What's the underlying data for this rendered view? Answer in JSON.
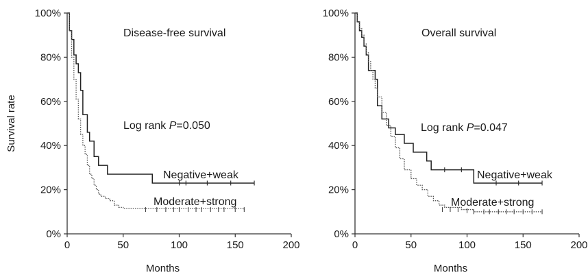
{
  "chart_data": [
    {
      "type": "line",
      "subtype": "kaplan-meier",
      "title": "Disease-free survival",
      "xlabel": "Months",
      "ylabel": "Survival rate",
      "xlim": [
        0,
        200
      ],
      "ylim": [
        0,
        100
      ],
      "x_ticks": [
        "0",
        "50",
        "100",
        "150",
        "200"
      ],
      "y_ticks": [
        "0%",
        "20%",
        "40%",
        "60%",
        "80%",
        "100%"
      ],
      "grid": false,
      "annotation": {
        "prefix": "Log rank ",
        "var": "P",
        "suffix": "=0.050"
      },
      "series": [
        {
          "name": "Negative+weak",
          "line": "solid",
          "x": [
            0,
            2,
            4,
            6,
            8,
            10,
            12,
            14,
            18,
            20,
            24,
            28,
            36,
            76,
            167
          ],
          "y": [
            100,
            92,
            88,
            81,
            77,
            73,
            65,
            54,
            46,
            42,
            35,
            31,
            27,
            23,
            23
          ],
          "censored_x": [
            100,
            106,
            125,
            146,
            167
          ],
          "censored_y": [
            23,
            23,
            23,
            23,
            23
          ]
        },
        {
          "name": "Moderate+strong",
          "line": "dotted",
          "x": [
            0,
            2,
            4,
            6,
            8,
            10,
            12,
            14,
            16,
            18,
            20,
            22,
            24,
            26,
            28,
            30,
            34,
            38,
            42,
            46,
            50,
            158
          ],
          "y": [
            100,
            92,
            80,
            70,
            61,
            52,
            45,
            40,
            36,
            31,
            27,
            25,
            22,
            20,
            18,
            17,
            16,
            15,
            13,
            12,
            11.5,
            11
          ],
          "censored_x": [
            70,
            80,
            88,
            95,
            100,
            108,
            115,
            120,
            128,
            135,
            140,
            150,
            158
          ],
          "censored_y": [
            11,
            11,
            11,
            11,
            11,
            11,
            11,
            11,
            11,
            11,
            11,
            11,
            11
          ]
        }
      ]
    },
    {
      "type": "line",
      "subtype": "kaplan-meier",
      "title": "Overall survival",
      "xlabel": "Months",
      "ylabel": "",
      "xlim": [
        0,
        200
      ],
      "ylim": [
        0,
        100
      ],
      "x_ticks": [
        "0",
        "50",
        "100",
        "150",
        "200"
      ],
      "y_ticks": [
        "0%",
        "20%",
        "40%",
        "60%",
        "80%",
        "100%"
      ],
      "grid": false,
      "annotation": {
        "prefix": "Log rank ",
        "var": "P",
        "suffix": "=0.047"
      },
      "series": [
        {
          "name": "Negative+weak",
          "line": "solid",
          "x": [
            0,
            2,
            4,
            6,
            8,
            10,
            12,
            18,
            20,
            24,
            30,
            36,
            44,
            52,
            64,
            68,
            106,
            167
          ],
          "y": [
            100,
            96,
            92,
            89,
            85,
            81,
            74,
            70,
            58,
            52,
            48,
            45,
            41,
            37,
            33,
            29,
            23,
            23
          ],
          "censored_x": [
            80,
            95,
            126,
            146,
            167
          ],
          "censored_y": [
            29,
            29,
            23,
            23,
            23
          ]
        },
        {
          "name": "Moderate+strong",
          "line": "dotted",
          "x": [
            0,
            2,
            4,
            6,
            8,
            10,
            12,
            14,
            16,
            18,
            20,
            24,
            28,
            32,
            36,
            40,
            44,
            50,
            55,
            60,
            65,
            70,
            75,
            80,
            95,
            106,
            167
          ],
          "y": [
            100,
            96,
            93,
            90,
            86,
            82,
            78,
            74,
            70,
            66,
            62,
            55,
            49,
            44,
            39,
            34,
            29,
            25,
            22,
            20,
            17,
            15,
            13,
            12,
            11,
            10,
            10
          ],
          "censored_x": [
            78,
            85,
            92,
            100,
            106,
            115,
            120,
            128,
            135,
            142,
            150,
            158,
            167
          ],
          "censored_y": [
            11,
            11,
            11,
            10.5,
            10,
            10,
            10,
            10,
            10,
            10,
            10,
            10,
            10
          ]
        }
      ]
    }
  ]
}
